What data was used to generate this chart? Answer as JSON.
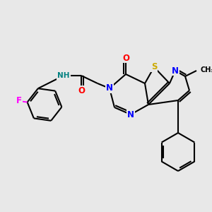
{
  "bg_color": "#e8e8e8",
  "bond_color": "#000000",
  "atom_colors": {
    "N": "#0000ff",
    "O": "#ff0000",
    "S": "#ccaa00",
    "F": "#ff00ff",
    "H": "#008080",
    "C": "#000000"
  }
}
